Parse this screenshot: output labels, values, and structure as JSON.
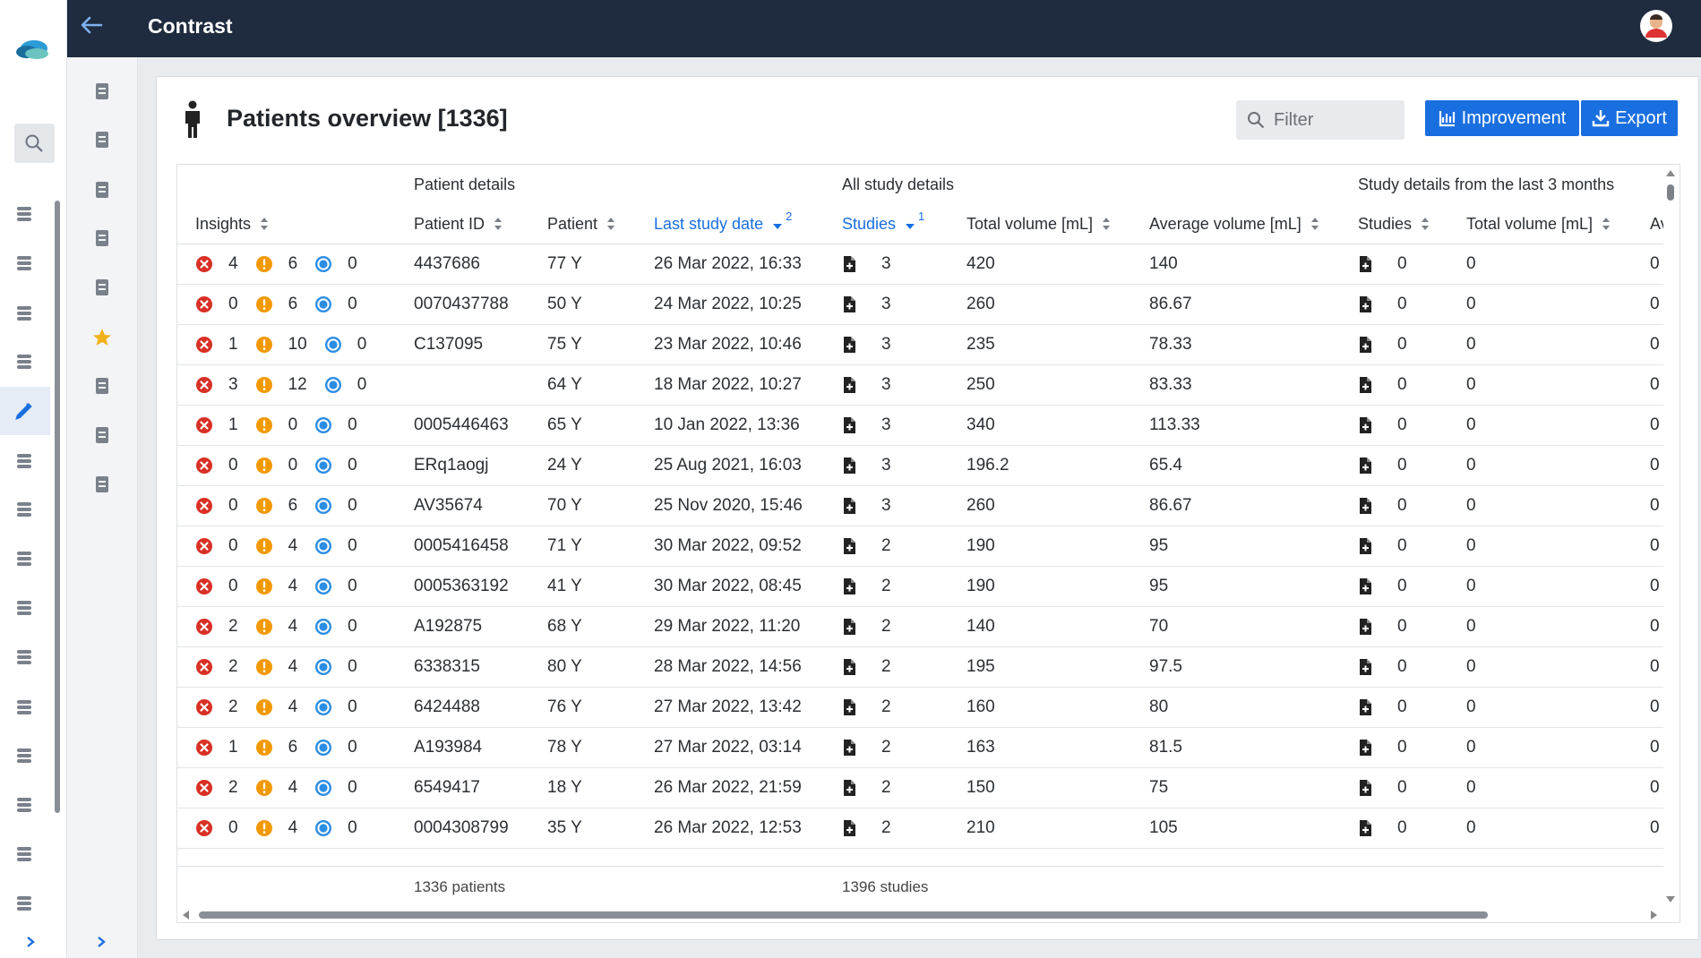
{
  "header": {
    "title": "Contrast"
  },
  "page": {
    "title": "Patients overview [1336]",
    "filter_placeholder": "Filter",
    "buttons": [
      "Improvement",
      "Export"
    ]
  },
  "table": {
    "groups": [
      "Patient details",
      "All study details",
      "Study details from the last 3 months"
    ],
    "columns": [
      {
        "label": "Insights"
      },
      {
        "label": "Patient ID"
      },
      {
        "label": "Patient"
      },
      {
        "label": "Last study date",
        "sorted": "desc",
        "sort_rank": 2
      },
      {
        "label": "Studies",
        "sorted": "desc",
        "sort_rank": 1
      },
      {
        "label": "Total volume [mL]"
      },
      {
        "label": "Average volume [mL]"
      },
      {
        "label": "Studies"
      },
      {
        "label": "Total volume [mL]"
      },
      {
        "label": "Av"
      }
    ],
    "rows": [
      [
        "4",
        "6",
        "0",
        "4437686",
        "77 Y",
        "26 Mar 2022, 16:33",
        "3",
        "420",
        "140",
        "0",
        "0",
        "0"
      ],
      [
        "0",
        "6",
        "0",
        "0070437788",
        "50 Y",
        "24 Mar 2022, 10:25",
        "3",
        "260",
        "86.67",
        "0",
        "0",
        "0"
      ],
      [
        "1",
        "10",
        "0",
        "C137095",
        "75 Y",
        "23 Mar 2022, 10:46",
        "3",
        "235",
        "78.33",
        "0",
        "0",
        "0"
      ],
      [
        "3",
        "12",
        "0",
        null,
        "64 Y",
        "18 Mar 2022, 10:27",
        "3",
        "250",
        "83.33",
        "0",
        "0",
        "0"
      ],
      [
        "1",
        "0",
        "0",
        "0005446463",
        "65 Y",
        "10 Jan 2022, 13:36",
        "3",
        "340",
        "113.33",
        "0",
        "0",
        "0"
      ],
      [
        "0",
        "0",
        "0",
        "ERq1aogj",
        "24 Y",
        "25 Aug 2021, 16:03",
        "3",
        "196.2",
        "65.4",
        "0",
        "0",
        "0"
      ],
      [
        "0",
        "6",
        "0",
        "AV35674",
        "70 Y",
        "25 Nov 2020, 15:46",
        "3",
        "260",
        "86.67",
        "0",
        "0",
        "0"
      ],
      [
        "0",
        "4",
        "0",
        "0005416458",
        "71 Y",
        "30 Mar 2022, 09:52",
        "2",
        "190",
        "95",
        "0",
        "0",
        "0"
      ],
      [
        "0",
        "4",
        "0",
        "0005363192",
        "41 Y",
        "30 Mar 2022, 08:45",
        "2",
        "190",
        "95",
        "0",
        "0",
        "0"
      ],
      [
        "2",
        "4",
        "0",
        "A192875",
        "68 Y",
        "29 Mar 2022, 11:20",
        "2",
        "140",
        "70",
        "0",
        "0",
        "0"
      ],
      [
        "2",
        "4",
        "0",
        "6338315",
        "80 Y",
        "28 Mar 2022, 14:56",
        "2",
        "195",
        "97.5",
        "0",
        "0",
        "0"
      ],
      [
        "2",
        "4",
        "0",
        "6424488",
        "76 Y",
        "27 Mar 2022, 13:42",
        "2",
        "160",
        "80",
        "0",
        "0",
        "0"
      ],
      [
        "1",
        "6",
        "0",
        "A193984",
        "78 Y",
        "27 Mar 2022, 03:14",
        "2",
        "163",
        "81.5",
        "0",
        "0",
        "0"
      ],
      [
        "2",
        "4",
        "0",
        "6549417",
        "18 Y",
        "26 Mar 2022, 21:59",
        "2",
        "150",
        "75",
        "0",
        "0",
        "0"
      ],
      [
        "0",
        "4",
        "0",
        "0004308799",
        "35 Y",
        "26 Mar 2022, 12:53",
        "2",
        "210",
        "105",
        "0",
        "0",
        "0"
      ]
    ],
    "footer": {
      "patients": "1336 patients",
      "studies": "1396 studies"
    }
  }
}
